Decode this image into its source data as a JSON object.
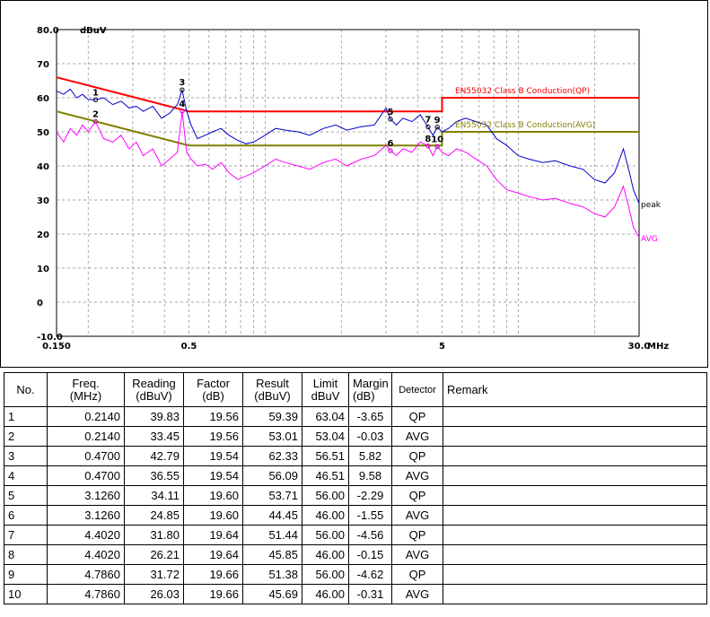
{
  "chart_data": {
    "type": "line",
    "y_unit": "dBuV",
    "x_unit": "MHz",
    "x_scale": "log",
    "xlim": [
      0.15,
      30.0
    ],
    "ylim": [
      -10.0,
      80.0
    ],
    "y_ticks": [
      "80.0",
      "70",
      "60",
      "50",
      "40",
      "30",
      "20",
      "10",
      "0",
      "-10.0"
    ],
    "y_tick_values": [
      80,
      70,
      60,
      50,
      40,
      30,
      20,
      10,
      0,
      -10
    ],
    "x_ticks": [
      "0.150",
      "0.5",
      "5",
      "30.0"
    ],
    "x_tick_values": [
      0.15,
      0.5,
      5,
      30
    ],
    "grid": true,
    "limit_lines": [
      {
        "name": "EN55032 Class B Conduction(QP)",
        "color": "#ff0000",
        "points": [
          [
            0.15,
            66
          ],
          [
            0.5,
            56
          ],
          [
            5,
            56
          ],
          [
            5,
            60
          ],
          [
            30,
            60
          ]
        ]
      },
      {
        "name": "EN55032 Class B Conduction(AVG)",
        "color": "#808000",
        "points": [
          [
            0.15,
            56
          ],
          [
            0.5,
            46
          ],
          [
            5,
            46
          ],
          [
            5,
            50
          ],
          [
            30,
            50
          ]
        ]
      }
    ],
    "series": [
      {
        "name": "peak",
        "color": "#0000cc",
        "x": [
          0.15,
          0.16,
          0.17,
          0.18,
          0.19,
          0.2,
          0.214,
          0.23,
          0.25,
          0.27,
          0.29,
          0.31,
          0.33,
          0.36,
          0.39,
          0.42,
          0.45,
          0.47,
          0.49,
          0.51,
          0.54,
          0.58,
          0.62,
          0.67,
          0.72,
          0.78,
          0.84,
          0.9,
          1.0,
          1.1,
          1.2,
          1.35,
          1.5,
          1.7,
          1.9,
          2.1,
          2.4,
          2.7,
          3.0,
          3.126,
          3.3,
          3.5,
          3.8,
          4.1,
          4.402,
          4.6,
          4.786,
          5.0,
          5.3,
          5.7,
          6.2,
          6.8,
          7.5,
          8.2,
          9.0,
          10.0,
          11.0,
          12.5,
          14.0,
          16.0,
          18.0,
          20.0,
          22.0,
          24.0,
          26.0,
          27.5,
          28.5,
          30.0
        ],
        "y": [
          62,
          61,
          62.5,
          60,
          61,
          59.5,
          59.4,
          60,
          58,
          59,
          57,
          57.5,
          56,
          57.5,
          54,
          55.5,
          58,
          62.3,
          56,
          52,
          48,
          49,
          50,
          51,
          49,
          47.5,
          46.5,
          47,
          49,
          51,
          50.5,
          50,
          49,
          51,
          52,
          50.5,
          51.5,
          52,
          57,
          53.7,
          52,
          54,
          53,
          55,
          51.4,
          49,
          51.4,
          50,
          51,
          53,
          54,
          53,
          52,
          48,
          46,
          43,
          42,
          41,
          41.5,
          40,
          39,
          36,
          35,
          38,
          45,
          38,
          33,
          29
        ]
      },
      {
        "name": "AVG",
        "color": "#ff00ff",
        "x": [
          0.15,
          0.16,
          0.17,
          0.18,
          0.19,
          0.2,
          0.214,
          0.23,
          0.25,
          0.27,
          0.29,
          0.31,
          0.33,
          0.36,
          0.39,
          0.42,
          0.45,
          0.47,
          0.49,
          0.51,
          0.54,
          0.58,
          0.62,
          0.67,
          0.72,
          0.78,
          0.84,
          0.9,
          1.0,
          1.1,
          1.2,
          1.35,
          1.5,
          1.7,
          1.9,
          2.1,
          2.4,
          2.7,
          3.0,
          3.126,
          3.3,
          3.5,
          3.8,
          4.1,
          4.402,
          4.6,
          4.786,
          5.0,
          5.3,
          5.7,
          6.2,
          6.8,
          7.5,
          8.2,
          9.0,
          10.0,
          11.0,
          12.5,
          14.0,
          16.0,
          18.0,
          20.0,
          22.0,
          24.0,
          26.0,
          27.5,
          28.5,
          30.0
        ],
        "y": [
          50,
          47,
          51,
          49,
          52,
          50,
          53,
          48,
          47,
          49,
          45,
          47,
          43,
          45,
          40,
          42,
          44,
          56,
          44,
          42,
          40,
          40.5,
          39,
          41,
          38,
          36,
          37,
          38,
          40,
          42,
          41,
          40,
          39,
          41,
          42,
          40,
          42,
          43,
          46,
          44.5,
          43,
          45,
          44,
          47,
          45.9,
          43,
          45.7,
          44,
          43,
          45,
          44,
          42,
          40,
          36,
          33,
          32,
          31,
          30,
          30.5,
          29,
          28,
          26,
          25,
          28,
          34,
          27,
          22,
          19
        ]
      }
    ],
    "labels": {
      "y_unit_label": "dBuV",
      "x_unit_label": "MHz",
      "peak_label": "peak",
      "avg_label": "AVG",
      "qp_limit_label": "EN55032 Class B Conduction(QP)",
      "avg_limit_label": "EN55032 Class B Conduction(AVG)"
    },
    "markers": [
      {
        "id": "1",
        "freq": 0.214,
        "level": 59.39,
        "detector": "QP"
      },
      {
        "id": "2",
        "freq": 0.214,
        "level": 53.01,
        "detector": "AVG"
      },
      {
        "id": "3",
        "freq": 0.47,
        "level": 62.33,
        "detector": "QP"
      },
      {
        "id": "4",
        "freq": 0.47,
        "level": 56.09,
        "detector": "AVG"
      },
      {
        "id": "5",
        "freq": 3.126,
        "level": 53.71,
        "detector": "QP"
      },
      {
        "id": "6",
        "freq": 3.126,
        "level": 44.45,
        "detector": "AVG"
      },
      {
        "id": "7",
        "freq": 4.402,
        "level": 51.44,
        "detector": "QP"
      },
      {
        "id": "8",
        "freq": 4.402,
        "level": 45.85,
        "detector": "AVG"
      },
      {
        "id": "9",
        "freq": 4.786,
        "level": 51.38,
        "detector": "QP"
      },
      {
        "id": "10",
        "freq": 4.786,
        "level": 45.69,
        "detector": "AVG"
      }
    ]
  },
  "table": {
    "headers": {
      "no": "No.",
      "freq_1": "Freq.",
      "freq_2": "(MHz)",
      "reading_1": "Reading",
      "reading_2": "(dBuV)",
      "factor_1": "Factor",
      "factor_2": "(dB)",
      "result_1": "Result",
      "result_2": "(dBuV)",
      "limit_1": "Limit",
      "limit_2": "dBuV",
      "margin_1": "Margin",
      "margin_2": "(dB)",
      "detector": "Detector",
      "remark": "Remark"
    },
    "rows": [
      {
        "no": "1",
        "freq": "0.2140",
        "reading": "39.83",
        "factor": "19.56",
        "result": "59.39",
        "limit": "63.04",
        "margin": "-3.65",
        "detector": "QP",
        "remark": ""
      },
      {
        "no": "2",
        "freq": "0.2140",
        "reading": "33.45",
        "factor": "19.56",
        "result": "53.01",
        "limit": "53.04",
        "margin": "-0.03",
        "detector": "AVG",
        "remark": ""
      },
      {
        "no": "3",
        "freq": "0.4700",
        "reading": "42.79",
        "factor": "19.54",
        "result": "62.33",
        "limit": "56.51",
        "margin": "5.82",
        "detector": "QP",
        "remark": ""
      },
      {
        "no": "4",
        "freq": "0.4700",
        "reading": "36.55",
        "factor": "19.54",
        "result": "56.09",
        "limit": "46.51",
        "margin": "9.58",
        "detector": "AVG",
        "remark": ""
      },
      {
        "no": "5",
        "freq": "3.1260",
        "reading": "34.11",
        "factor": "19.60",
        "result": "53.71",
        "limit": "56.00",
        "margin": "-2.29",
        "detector": "QP",
        "remark": ""
      },
      {
        "no": "6",
        "freq": "3.1260",
        "reading": "24.85",
        "factor": "19.60",
        "result": "44.45",
        "limit": "46.00",
        "margin": "-1.55",
        "detector": "AVG",
        "remark": ""
      },
      {
        "no": "7",
        "freq": "4.4020",
        "reading": "31.80",
        "factor": "19.64",
        "result": "51.44",
        "limit": "56.00",
        "margin": "-4.56",
        "detector": "QP",
        "remark": ""
      },
      {
        "no": "8",
        "freq": "4.4020",
        "reading": "26.21",
        "factor": "19.64",
        "result": "45.85",
        "limit": "46.00",
        "margin": "-0.15",
        "detector": "AVG",
        "remark": ""
      },
      {
        "no": "9",
        "freq": "4.7860",
        "reading": "31.72",
        "factor": "19.66",
        "result": "51.38",
        "limit": "56.00",
        "margin": "-4.62",
        "detector": "QP",
        "remark": ""
      },
      {
        "no": "10",
        "freq": "4.7860",
        "reading": "26.03",
        "factor": "19.66",
        "result": "45.69",
        "limit": "46.00",
        "margin": "-0.31",
        "detector": "AVG",
        "remark": ""
      }
    ]
  }
}
